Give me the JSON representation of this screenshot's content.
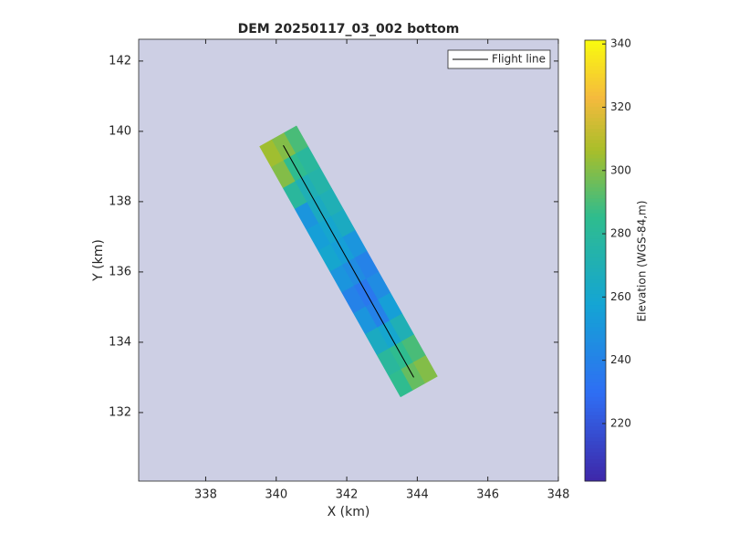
{
  "chart_data": {
    "type": "image",
    "title": "DEM 20250117_03_002 bottom",
    "xlabel": "X (km)",
    "ylabel": "Y (km)",
    "xlim": [
      336.1,
      348
    ],
    "xticks": [
      338,
      340,
      342,
      344,
      346,
      348
    ],
    "ylim": [
      130.05,
      142.62
    ],
    "yticks": [
      132,
      134,
      136,
      138,
      140,
      142
    ],
    "colorbar": {
      "label": "Elevation (WGS-84,m)",
      "lim": [
        201.8,
        341.2
      ],
      "ticks": [
        220,
        240,
        260,
        280,
        300,
        320,
        340
      ],
      "colormap": "parula"
    },
    "dem": [
      [
        305,
        300,
        290
      ],
      [
        300,
        285,
        280
      ],
      [
        280,
        270,
        275
      ],
      [
        250,
        265,
        270
      ],
      [
        255,
        260,
        265
      ],
      [
        260,
        255,
        250
      ],
      [
        250,
        245,
        240
      ],
      [
        240,
        235,
        245
      ],
      [
        250,
        240,
        255
      ],
      [
        265,
        260,
        270
      ],
      [
        280,
        285,
        290
      ],
      [
        285,
        295,
        300
      ]
    ],
    "flight_line": {
      "name": "Flight line",
      "color": "#000000",
      "x": [
        340.2,
        343.9
      ],
      "y": [
        139.6,
        133.0
      ]
    },
    "legend": "upper right"
  }
}
